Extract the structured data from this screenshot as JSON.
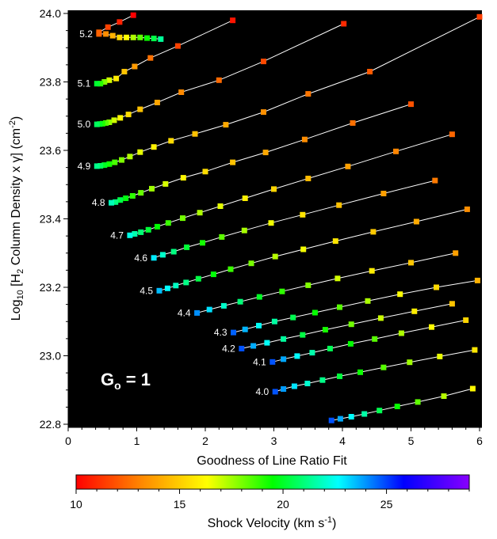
{
  "chart_data": {
    "type": "line",
    "xlabel": "Goodness of Line Ratio Fit",
    "ylabel": "Log10 [H2 Column Density x γ] (cm-2)",
    "ylabel_parts": {
      "pre": "Log",
      "sub1": "10",
      "mid": " [H",
      "sub2": "2",
      "post": " Column Density x γ] (cm",
      "sup": "-2",
      "end": ")"
    },
    "annotation": {
      "main": "G",
      "sub": "o",
      "rest": " = 1"
    },
    "xlim": [
      0,
      6
    ],
    "ylim": [
      22.78,
      24.01
    ],
    "xticks": [
      0,
      1,
      2,
      3,
      4,
      5,
      6
    ],
    "yticks": [
      22.8,
      23.0,
      23.2,
      23.4,
      23.6,
      23.8,
      24.0
    ],
    "xtick_labels": [
      "0",
      "1",
      "2",
      "3",
      "4",
      "5",
      "6"
    ],
    "ytick_labels": [
      "22.8",
      "23.0",
      "23.2",
      "23.4",
      "23.6",
      "23.8",
      "24.0"
    ],
    "background": "#000000",
    "line_color": "#ffffff",
    "colorbar": {
      "label": "Shock Velocity (km s",
      "label_sup": "-1",
      "label_end": ")",
      "vmin": 10,
      "vmax": 29,
      "ticks": [
        10,
        15,
        20,
        25
      ],
      "tick_labels": [
        "10",
        "15",
        "20",
        "25"
      ],
      "colors": [
        "#ff0000",
        "#ff8800",
        "#ffff00",
        "#00ff00",
        "#00ffff",
        "#0000ff",
        "#8800ff"
      ]
    },
    "series": [
      {
        "name": "5.2",
        "v_start": 10,
        "x": [
          0.95,
          0.75,
          0.58,
          0.45
        ],
        "y": [
          23.995,
          23.975,
          23.96,
          23.945
        ],
        "x2": [
          0.45,
          0.55,
          0.65,
          0.75,
          0.85,
          0.95,
          1.05,
          1.15,
          1.25,
          1.35
        ],
        "y2": [
          23.94,
          23.94,
          23.935,
          23.93,
          23.93,
          23.93,
          23.93,
          23.928,
          23.927,
          23.925
        ]
      },
      {
        "name": "5.1",
        "x": [
          2.4,
          1.6,
          1.2,
          0.97,
          0.82,
          0.7,
          0.6,
          0.53,
          0.47,
          0.42
        ],
        "y": [
          23.98,
          23.905,
          23.87,
          23.845,
          23.83,
          23.81,
          23.805,
          23.8,
          23.795,
          23.795
        ]
      },
      {
        "name": "5.0",
        "x": [
          4.02,
          2.85,
          2.2,
          1.65,
          1.3,
          1.05,
          0.88,
          0.76,
          0.67,
          0.6,
          0.55,
          0.5,
          0.46,
          0.42
        ],
        "y": [
          23.97,
          23.86,
          23.805,
          23.77,
          23.74,
          23.72,
          23.705,
          23.695,
          23.688,
          23.682,
          23.68,
          23.678,
          23.677,
          23.676
        ]
      },
      {
        "name": "4.9",
        "x": [
          6.0,
          4.4,
          3.5,
          2.85,
          2.3,
          1.85,
          1.5,
          1.25,
          1.05,
          0.9,
          0.78,
          0.68,
          0.6,
          0.53,
          0.47,
          0.42
        ],
        "y": [
          23.99,
          23.83,
          23.765,
          23.712,
          23.675,
          23.648,
          23.628,
          23.61,
          23.595,
          23.582,
          23.572,
          23.565,
          23.56,
          23.557,
          23.555,
          23.554
        ]
      },
      {
        "name": "4.8",
        "x": [
          5.0,
          4.15,
          3.45,
          2.88,
          2.4,
          2.0,
          1.68,
          1.42,
          1.22,
          1.06,
          0.94,
          0.84,
          0.76,
          0.69,
          0.63
        ],
        "y": [
          23.735,
          23.68,
          23.632,
          23.594,
          23.565,
          23.538,
          23.52,
          23.502,
          23.488,
          23.476,
          23.467,
          23.46,
          23.455,
          23.449,
          23.447
        ]
      },
      {
        "name": "4.7",
        "x": [
          5.6,
          4.78,
          4.08,
          3.5,
          3.0,
          2.58,
          2.22,
          1.92,
          1.67,
          1.46,
          1.3,
          1.17,
          1.06,
          0.97,
          0.9
        ],
        "y": [
          23.647,
          23.597,
          23.553,
          23.518,
          23.487,
          23.46,
          23.437,
          23.418,
          23.402,
          23.388,
          23.377,
          23.368,
          23.361,
          23.356,
          23.352
        ]
      },
      {
        "name": "4.6",
        "x": [
          5.35,
          4.6,
          3.95,
          3.42,
          2.96,
          2.57,
          2.24,
          1.96,
          1.73,
          1.54,
          1.38,
          1.25
        ],
        "y": [
          23.512,
          23.474,
          23.44,
          23.412,
          23.388,
          23.366,
          23.347,
          23.33,
          23.317,
          23.304,
          23.295,
          23.286
        ]
      },
      {
        "name": "4.5",
        "x": [
          5.82,
          5.08,
          4.45,
          3.9,
          3.43,
          3.02,
          2.67,
          2.37,
          2.12,
          1.9,
          1.72,
          1.57,
          1.45,
          1.33
        ],
        "y": [
          23.428,
          23.392,
          23.362,
          23.335,
          23.311,
          23.29,
          23.27,
          23.253,
          23.238,
          23.225,
          23.214,
          23.205,
          23.197,
          23.19
        ]
      },
      {
        "name": "4.4",
        "x": [
          5.65,
          5.0,
          4.43,
          3.93,
          3.5,
          3.12,
          2.79,
          2.51,
          2.27,
          2.06,
          1.88
        ],
        "y": [
          23.3,
          23.272,
          23.248,
          23.226,
          23.206,
          23.188,
          23.172,
          23.158,
          23.146,
          23.135,
          23.125
        ]
      },
      {
        "name": "4.3",
        "x": [
          5.97,
          5.37,
          4.84,
          4.37,
          3.96,
          3.6,
          3.28,
          3.01,
          2.78,
          2.58,
          2.41
        ],
        "y": [
          23.22,
          23.2,
          23.18,
          23.16,
          23.142,
          23.126,
          23.112,
          23.1,
          23.088,
          23.077,
          23.068
        ]
      },
      {
        "name": "4.2",
        "x": [
          5.6,
          5.05,
          4.56,
          4.13,
          3.75,
          3.42,
          3.14,
          2.9,
          2.7,
          2.53
        ],
        "y": [
          23.152,
          23.13,
          23.11,
          23.092,
          23.076,
          23.061,
          23.049,
          23.038,
          23.029,
          23.021
        ]
      },
      {
        "name": "4.1",
        "x": [
          5.8,
          5.3,
          4.86,
          4.47,
          4.12,
          3.82,
          3.56,
          3.34,
          3.14,
          2.98
        ],
        "y": [
          23.104,
          23.084,
          23.066,
          23.049,
          23.035,
          23.021,
          23.009,
          22.999,
          22.99,
          22.982
        ]
      },
      {
        "name": "4.0",
        "x": [
          5.93,
          5.42,
          4.98,
          4.6,
          4.26,
          3.96,
          3.71,
          3.49,
          3.3,
          3.14,
          3.02
        ],
        "y": [
          23.017,
          22.998,
          22.981,
          22.966,
          22.952,
          22.94,
          22.929,
          22.919,
          22.911,
          22.903,
          22.895
        ]
      },
      {
        "name": "",
        "x": [
          5.9,
          5.48,
          5.1,
          4.8,
          4.54,
          4.32,
          4.13,
          3.97,
          3.84
        ],
        "y": [
          22.904,
          22.882,
          22.865,
          22.852,
          22.84,
          22.83,
          22.822,
          22.816,
          22.811
        ]
      }
    ],
    "series_labels": [
      "5.2",
      "5.1",
      "5.0",
      "4.9",
      "4.8",
      "4.7",
      "4.6",
      "4.5",
      "4.4",
      "4.3",
      "4.2",
      "4.1",
      "4.0"
    ]
  }
}
